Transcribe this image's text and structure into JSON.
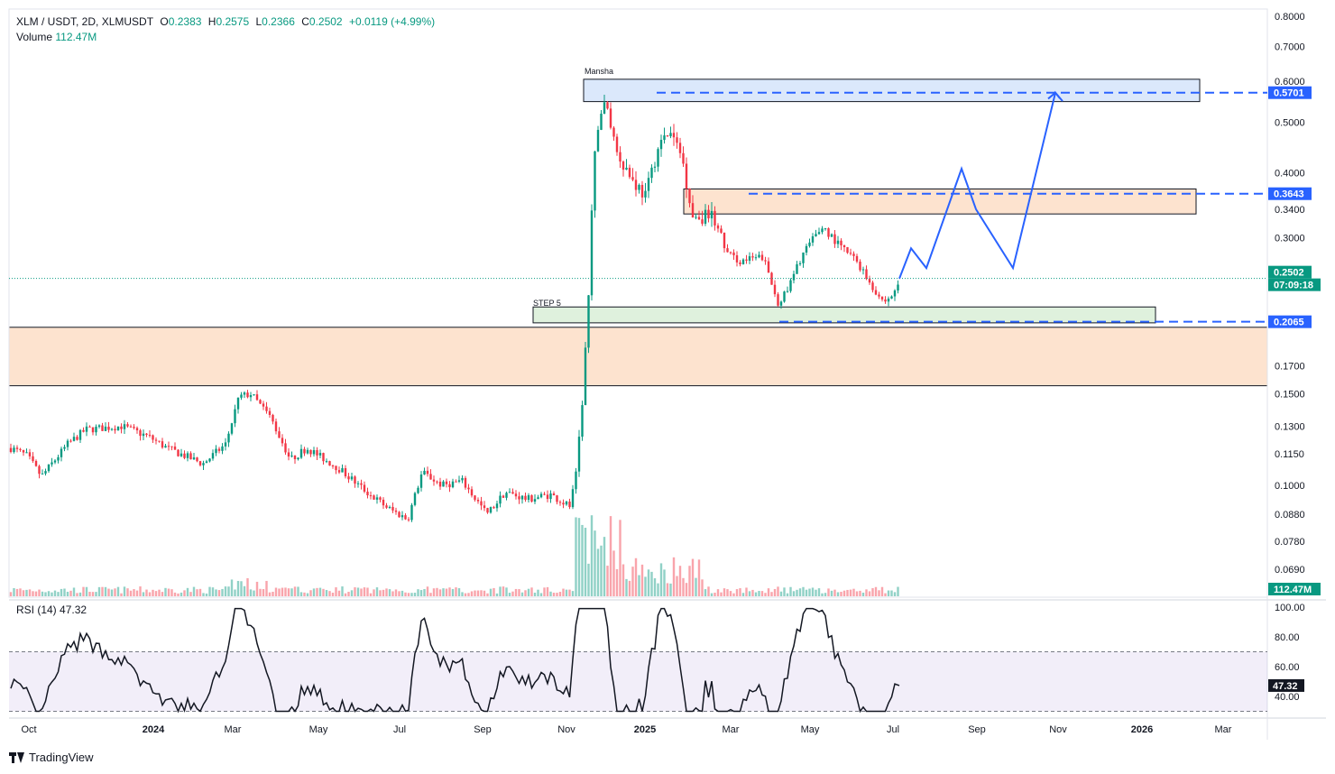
{
  "header": {
    "symbol": "XLM / USDT, 2D, XLMUSDT",
    "o_label": "O",
    "o_value": "0.2383",
    "h_label": "H",
    "h_value": "0.2575",
    "l_label": "L",
    "l_value": "0.2366",
    "c_label": "C",
    "c_value": "0.2502",
    "change": "+0.0119 (+4.99%)",
    "volume_label": "Volume",
    "volume_value": "112.47M"
  },
  "rsi": {
    "label": "RSI (14)",
    "value": "47.32"
  },
  "footer": {
    "brand": "TradingView"
  },
  "colors": {
    "up": "#089981",
    "down": "#f23645",
    "projection": "#2962ff",
    "rsi_line": "#131722"
  },
  "chart_data": {
    "type": "candlestick",
    "scale": "log",
    "price_ticks": [
      "0.8000",
      "0.7000",
      "0.6000",
      "0.5000",
      "0.4000",
      "0.3400",
      "0.3000",
      "0.2600",
      "0.2065",
      "0.1700",
      "0.1500",
      "0.1300",
      "0.1150",
      "0.1000",
      "0.0880",
      "0.0780",
      "0.0690"
    ],
    "rsi_ticks": [
      "100.00",
      "80.00",
      "60.00",
      "40.00"
    ],
    "time_labels": [
      "Oct",
      "2024",
      "Mar",
      "May",
      "Jul",
      "Sep",
      "Nov",
      "2025",
      "Mar",
      "May",
      "Jul",
      "Sep",
      "Nov",
      "2026",
      "Mar"
    ],
    "price_axis_badges": [
      {
        "value": "0.5701",
        "color": "#2962ff"
      },
      {
        "value": "0.3643",
        "color": "#2962ff"
      },
      {
        "value": "0.2502",
        "color": "#089981"
      },
      {
        "value": "07:09:18",
        "color": "#089981"
      },
      {
        "value": "0.2065",
        "color": "#2962ff"
      },
      {
        "value": "112.47M",
        "color": "#089981"
      }
    ],
    "rsi_badge": "47.32",
    "annotations": [
      {
        "text": "Mansha"
      },
      {
        "text": "STEP 5"
      }
    ],
    "zones": [
      {
        "name": "upper-target-zone",
        "top": 0.605,
        "bottom": 0.548,
        "color": "#dbe8fb"
      },
      {
        "name": "mid-resistance-zone",
        "top": 0.372,
        "bottom": 0.333,
        "color": "#fde3cf"
      },
      {
        "name": "step5-support-zone",
        "top": 0.2205,
        "bottom": 0.2055,
        "color": "#dff1dd"
      },
      {
        "name": "major-demand-zone",
        "top": 0.2015,
        "bottom": 0.1555,
        "color": "#fde3cf"
      }
    ],
    "levels": [
      0.5701,
      0.3643,
      0.2065
    ],
    "last_price": 0.2502,
    "projection_path": [
      0.25,
      0.286,
      0.262,
      0.407,
      0.34,
      0.262,
      0.57,
      0.549
    ],
    "key_points": [
      {
        "label": "start",
        "price": 0.118
      },
      {
        "label": "pre-2024-low",
        "price": 0.104
      },
      {
        "label": "mar-2024-high",
        "price": 0.16
      },
      {
        "label": "jul-2024-low",
        "price": 0.078
      },
      {
        "label": "oct-2024",
        "price": 0.091
      },
      {
        "label": "nov-2024-breakout",
        "price": 0.2
      },
      {
        "label": "dec-2024-high",
        "price": 0.62
      },
      {
        "label": "jan-2025-high",
        "price": 0.5
      },
      {
        "label": "apr-2025-low",
        "price": 0.206
      },
      {
        "label": "may-2025-high",
        "price": 0.33
      },
      {
        "label": "jun-2025-low",
        "price": 0.222
      },
      {
        "label": "current",
        "price": 0.2502
      }
    ]
  }
}
